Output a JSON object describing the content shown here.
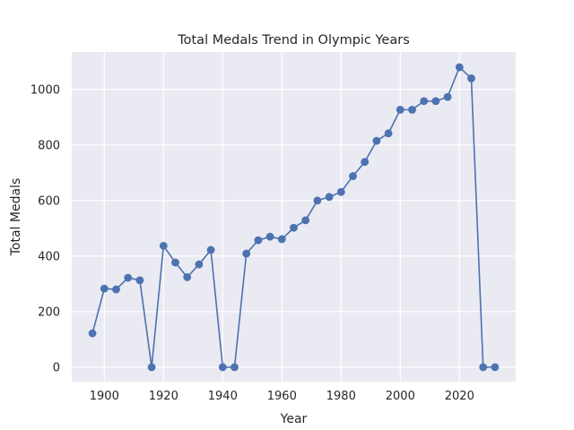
{
  "chart_data": {
    "type": "line",
    "title": "Total Medals Trend in Olympic Years",
    "xlabel": "Year",
    "ylabel": "Total Medals",
    "xlim": [
      1889,
      2039
    ],
    "ylim": [
      -52,
      1135
    ],
    "xticks": [
      1900,
      1920,
      1940,
      1960,
      1980,
      2000,
      2020
    ],
    "yticks": [
      0,
      200,
      400,
      600,
      800,
      1000
    ],
    "grid": true,
    "markers": true,
    "color": "#4c72b0",
    "background": "#eaeaf2",
    "x": [
      1896,
      1900,
      1904,
      1908,
      1912,
      1916,
      1920,
      1924,
      1928,
      1932,
      1936,
      1940,
      1944,
      1948,
      1952,
      1956,
      1960,
      1964,
      1968,
      1972,
      1976,
      1980,
      1984,
      1988,
      1992,
      1996,
      2000,
      2004,
      2008,
      2012,
      2016,
      2020,
      2024,
      2028,
      2032
    ],
    "y": [
      122,
      283,
      280,
      322,
      313,
      0,
      437,
      377,
      324,
      370,
      422,
      0,
      0,
      409,
      457,
      470,
      461,
      502,
      529,
      600,
      613,
      631,
      688,
      739,
      815,
      842,
      927,
      927,
      958,
      958,
      973,
      1080,
      1040,
      0,
      0
    ]
  }
}
